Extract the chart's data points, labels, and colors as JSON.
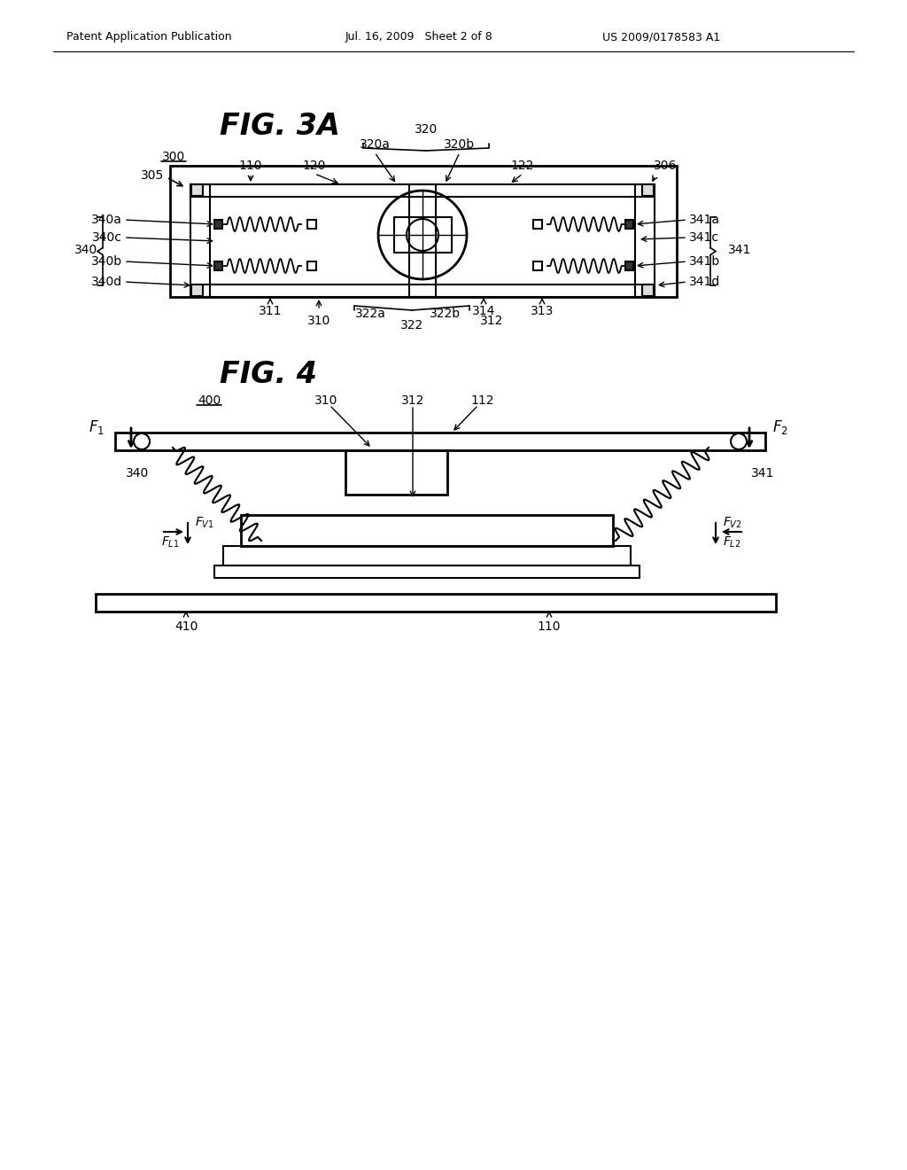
{
  "bg_color": "#ffffff",
  "header_left": "Patent Application Publication",
  "header_mid": "Jul. 16, 2009   Sheet 2 of 8",
  "header_right": "US 2009/0178583 A1",
  "fig3a_title": "FIG. 3A",
  "fig4_title": "FIG. 4"
}
